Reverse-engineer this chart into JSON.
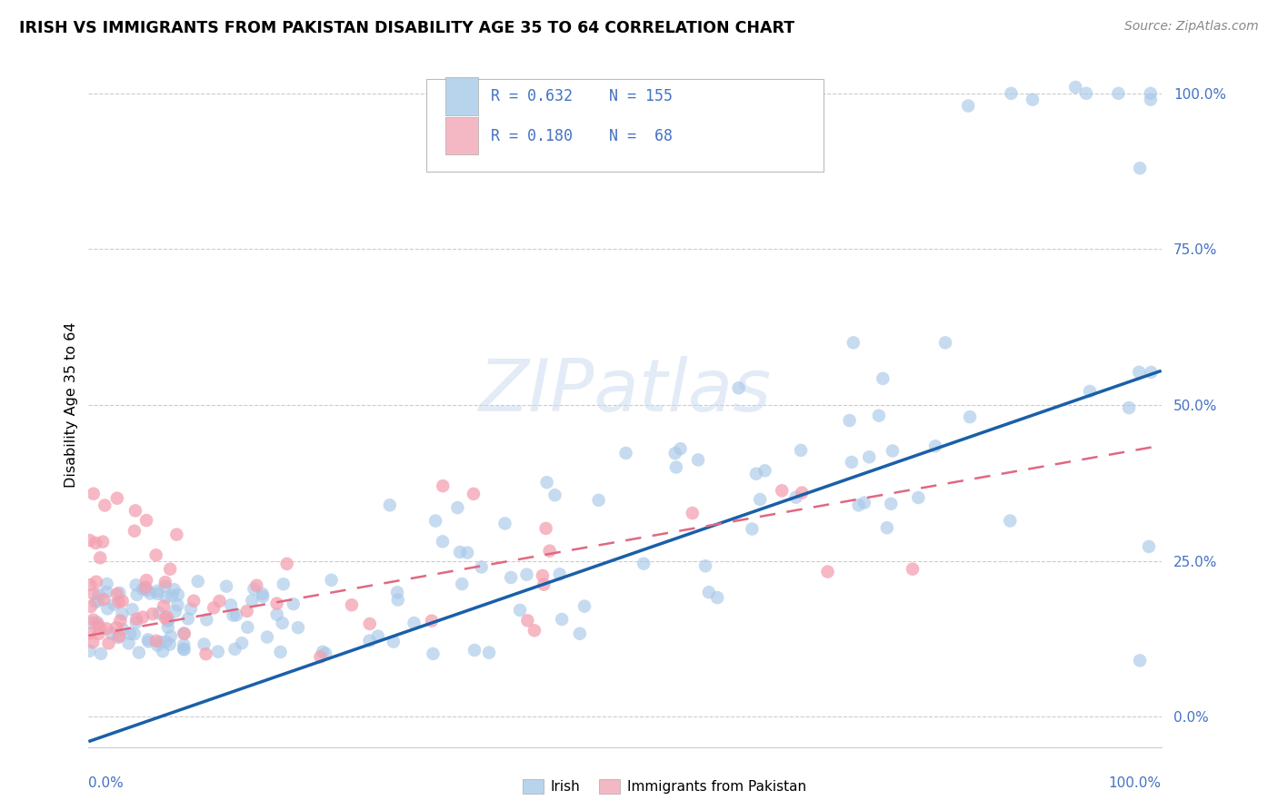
{
  "title": "IRISH VS IMMIGRANTS FROM PAKISTAN DISABILITY AGE 35 TO 64 CORRELATION CHART",
  "source": "Source: ZipAtlas.com",
  "ylabel": "Disability Age 35 to 64",
  "ytick_labels": [
    "0.0%",
    "25.0%",
    "50.0%",
    "75.0%",
    "100.0%"
  ],
  "ytick_values": [
    0.0,
    0.25,
    0.5,
    0.75,
    1.0
  ],
  "xlim": [
    0.0,
    1.0
  ],
  "ylim": [
    -0.05,
    1.05
  ],
  "irish_R": 0.632,
  "irish_N": 155,
  "pakistan_R": 0.18,
  "pakistan_N": 68,
  "irish_color": "#a8c8e8",
  "pakistan_color": "#f4a0b0",
  "irish_line_color": "#1a5fa8",
  "pakistan_line_color": "#e06880",
  "irish_line_x0": 0.0,
  "irish_line_y0": -0.04,
  "irish_line_x1": 1.0,
  "irish_line_y1": 0.555,
  "pak_line_x0": 0.0,
  "pak_line_y0": 0.13,
  "pak_line_x1": 1.0,
  "pak_line_y1": 0.435,
  "watermark_text": "ZIPatlas",
  "background_color": "#ffffff",
  "grid_color": "#cccccc",
  "legend_irish_color": "#b8d4ec",
  "legend_pak_color": "#f4b8c4",
  "legend_text_color": "#4472c4",
  "bottom_axis_color": "#cccccc"
}
